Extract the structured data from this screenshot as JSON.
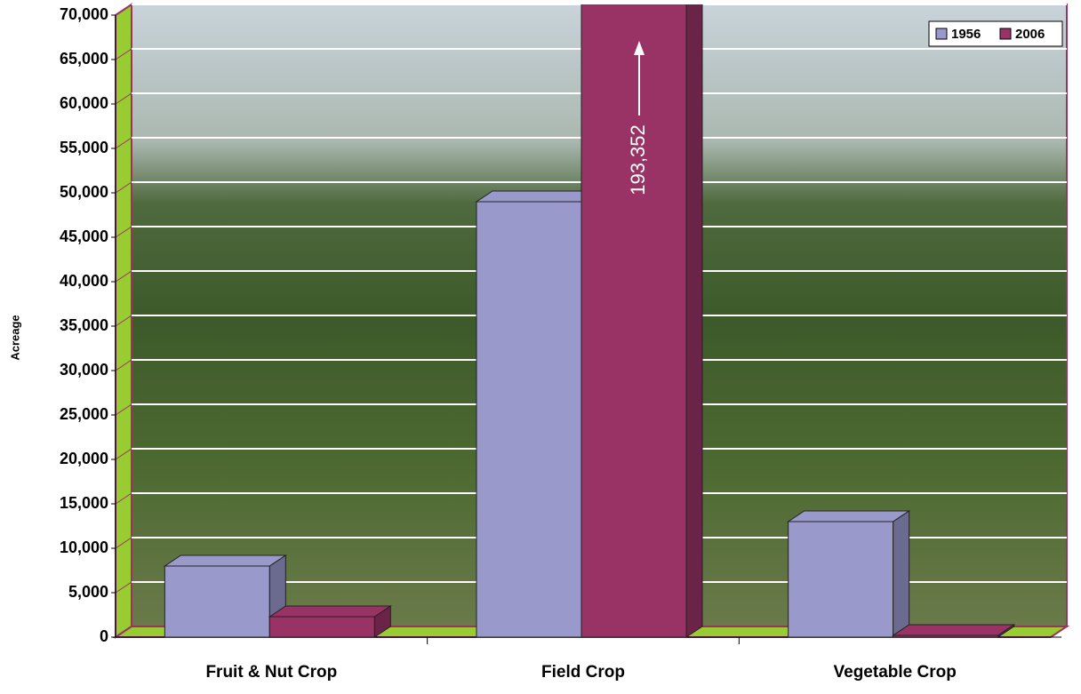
{
  "chart_data": {
    "type": "bar3d",
    "y_label": "Acreage",
    "categories": [
      "Fruit & Nut Crop",
      "Field Crop",
      "Vegetable Crop"
    ],
    "series": [
      {
        "name": "1956",
        "color": "#9999cc",
        "values": [
          8000,
          49000,
          13000
        ]
      },
      {
        "name": "2006",
        "color": "#993366",
        "values": [
          2300,
          193352,
          200
        ],
        "value_labels": [
          null,
          "193,352",
          null
        ]
      }
    ],
    "ylim": [
      0,
      70000
    ],
    "yticks": [
      0,
      {
        "value": 5000,
        "label": "5,000"
      },
      {
        "value": 10000,
        "label": "10,000"
      },
      {
        "value": 15000,
        "label": "15,000"
      },
      {
        "value": 20000,
        "label": "20,000"
      },
      {
        "value": 25000,
        "label": "25,000"
      },
      {
        "value": 30000,
        "label": "30,000"
      },
      {
        "value": 35000,
        "label": "35,000"
      },
      {
        "value": 40000,
        "label": "40,000"
      },
      {
        "value": 45000,
        "label": "45,000"
      },
      {
        "value": 50000,
        "label": "50,000"
      },
      {
        "value": 55000,
        "label": "55,000"
      },
      {
        "value": 60000,
        "label": "60,000"
      },
      {
        "value": 65000,
        "label": "65,000"
      },
      {
        "value": 70000,
        "label": "70,000"
      }
    ],
    "grid": true,
    "legend": "top-right"
  }
}
